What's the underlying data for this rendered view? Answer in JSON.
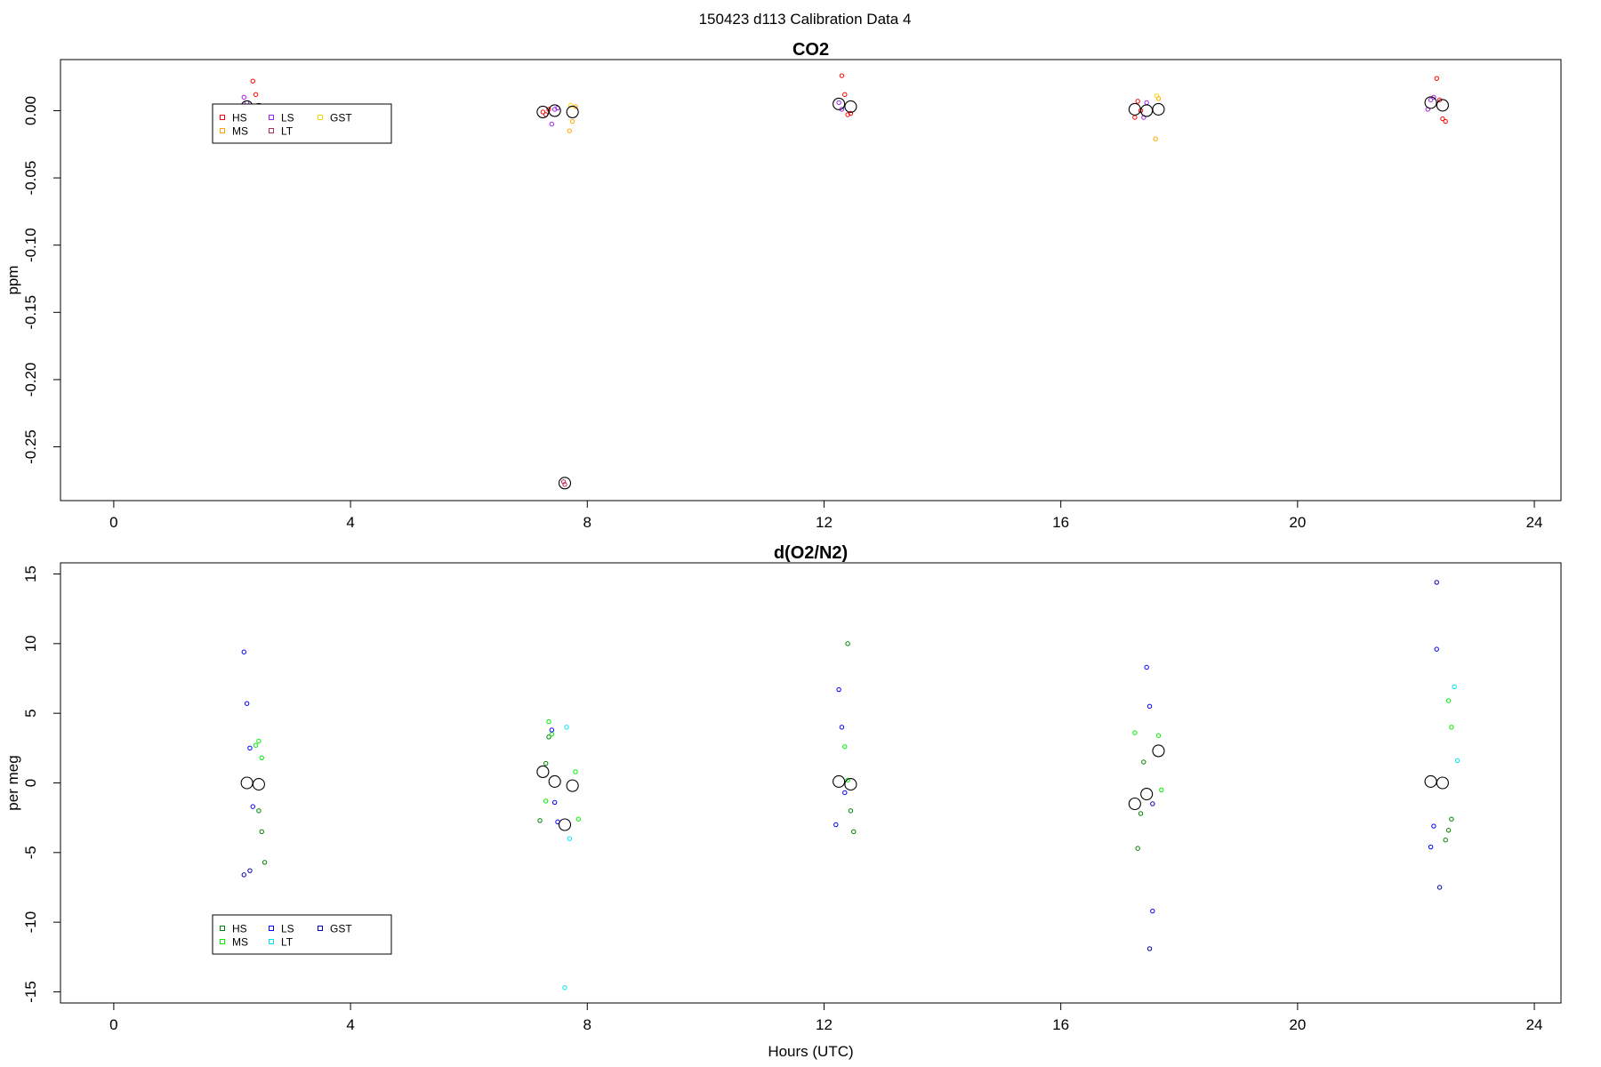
{
  "figure_title": "150423   d113   Calibration Data 4",
  "colors": {
    "HS_co2": "#ff0000",
    "MS_co2": "#ffa500",
    "LS_co2": "#a020f0",
    "LT_co2": "#b03060",
    "GST_co2": "#ffd700",
    "HS_o2": "#008000",
    "MS_o2": "#00ee00",
    "LS_o2": "#0000ff",
    "LT_o2": "#00e5ee",
    "GST_o2": "#0000aa",
    "mean": "#000000"
  },
  "chart_data": [
    {
      "type": "scatter",
      "title": "CO2",
      "xlabel": "",
      "ylabel": "ppm",
      "xlim": [
        -0.9,
        24.45
      ],
      "ylim": [
        -0.29,
        0.038
      ],
      "xticks": [
        "0",
        "4",
        "8",
        "12",
        "16",
        "20",
        "24"
      ],
      "xtick_values": [
        0,
        4,
        8,
        12,
        16,
        20,
        24
      ],
      "yticks": [
        "-0.25",
        "-0.20",
        "-0.15",
        "-0.10",
        "-0.05",
        "0.00"
      ],
      "ytick_values": [
        -0.25,
        -0.2,
        -0.15,
        -0.1,
        -0.05,
        0.0
      ],
      "grid": false,
      "legend_position": "top-left",
      "legend": [
        "HS",
        "MS",
        "LS",
        "LT",
        "GST"
      ],
      "series": [
        {
          "name": "HS",
          "color": "#ff0000",
          "x": [
            2.35,
            2.4,
            7.25,
            7.3,
            7.35,
            12.3,
            12.35,
            12.4,
            12.45,
            17.25,
            17.3,
            17.35,
            22.35,
            22.4,
            22.45,
            22.5
          ],
          "y": [
            0.022,
            0.012,
            -0.001,
            -0.003,
            0.001,
            0.026,
            0.012,
            -0.003,
            -0.002,
            -0.005,
            0.007,
            0.0,
            0.024,
            0.008,
            -0.006,
            -0.008
          ]
        },
        {
          "name": "MS",
          "color": "#ffa500",
          "x": [
            2.4,
            7.7,
            7.75,
            7.8,
            17.6,
            17.65
          ],
          "y": [
            0.001,
            -0.015,
            -0.008,
            0.003,
            -0.021,
            0.009
          ]
        },
        {
          "name": "LS",
          "color": "#a020f0",
          "x": [
            2.2,
            2.25,
            7.4,
            7.45,
            7.5,
            12.25,
            12.3,
            17.4,
            17.45,
            22.2,
            22.25,
            22.3
          ],
          "y": [
            0.01,
            0.006,
            -0.01,
            0.001,
            0.002,
            0.006,
            0.001,
            -0.005,
            0.006,
            0.001,
            0.008,
            0.01
          ]
        },
        {
          "name": "LT",
          "color": "#b03060",
          "x": [
            7.6,
            7.62
          ],
          "y": [
            -0.276,
            -0.278
          ]
        },
        {
          "name": "GST",
          "color": "#ffd700",
          "x": [
            7.72,
            17.62
          ],
          "y": [
            0.004,
            0.011
          ]
        },
        {
          "name": "mean",
          "color": "#000000",
          "x": [
            2.25,
            2.45,
            7.25,
            7.45,
            7.62,
            7.75,
            12.25,
            12.45,
            17.25,
            17.45,
            17.65,
            22.25,
            22.45
          ],
          "y": [
            0.003,
            0.001,
            -0.001,
            0.0,
            -0.277,
            -0.001,
            0.005,
            0.003,
            0.001,
            0.0,
            0.001,
            0.006,
            0.004
          ]
        }
      ]
    },
    {
      "type": "scatter",
      "title": "d(O2/N2)",
      "xlabel": "Hours (UTC)",
      "ylabel": "per meg",
      "xlim": [
        -0.9,
        24.45
      ],
      "ylim": [
        -15.8,
        15.8
      ],
      "xticks": [
        "0",
        "4",
        "8",
        "12",
        "16",
        "20",
        "24"
      ],
      "xtick_values": [
        0,
        4,
        8,
        12,
        16,
        20,
        24
      ],
      "yticks": [
        "-15",
        "-10",
        "-5",
        "0",
        "5",
        "10",
        "15"
      ],
      "ytick_values": [
        -15,
        -10,
        -5,
        0,
        5,
        10,
        15
      ],
      "grid": false,
      "legend_position": "bottom-left",
      "legend": [
        "HS",
        "MS",
        "LS",
        "LT",
        "GST"
      ],
      "series": [
        {
          "name": "HS",
          "color": "#008000",
          "x": [
            2.45,
            2.5,
            2.55,
            7.2,
            7.3,
            7.35,
            12.4,
            12.45,
            12.5,
            17.3,
            17.35,
            17.4,
            22.5,
            22.55,
            22.6
          ],
          "y": [
            -2.0,
            -3.5,
            -5.7,
            -2.7,
            1.4,
            3.3,
            10.0,
            -2.0,
            -3.5,
            -4.7,
            -2.2,
            1.5,
            -4.1,
            -3.4,
            -2.6
          ]
        },
        {
          "name": "MS",
          "color": "#00ee00",
          "x": [
            2.4,
            2.45,
            2.5,
            7.3,
            7.35,
            7.4,
            7.8,
            7.85,
            12.35,
            12.4,
            17.25,
            17.65,
            17.7,
            22.55,
            22.6
          ],
          "y": [
            2.7,
            3.0,
            1.8,
            -1.3,
            4.4,
            3.5,
            0.8,
            -2.6,
            2.6,
            0.2,
            3.6,
            3.4,
            -0.5,
            5.9,
            4.0
          ]
        },
        {
          "name": "LS",
          "color": "#0000ff",
          "x": [
            2.2,
            2.25,
            2.3,
            2.35,
            7.4,
            7.45,
            7.5,
            12.2,
            12.25,
            12.3,
            12.35,
            17.45,
            17.5,
            17.55,
            22.25,
            22.3,
            22.35
          ],
          "y": [
            9.4,
            5.7,
            2.5,
            -1.7,
            3.8,
            -1.4,
            -2.8,
            -3.0,
            6.7,
            4.0,
            -0.7,
            8.3,
            5.5,
            -9.2,
            -4.6,
            -3.1,
            9.6
          ]
        },
        {
          "name": "LT",
          "color": "#00e5ee",
          "x": [
            7.62,
            7.65,
            7.7,
            22.65,
            22.7
          ],
          "y": [
            -14.7,
            4.0,
            -4.0,
            6.9,
            1.6
          ]
        },
        {
          "name": "GST",
          "color": "#0000aa",
          "x": [
            2.2,
            2.3,
            17.5,
            17.55,
            22.35,
            22.4
          ],
          "y": [
            -6.6,
            -6.3,
            -11.9,
            -1.5,
            14.4,
            -7.5
          ]
        },
        {
          "name": "mean",
          "color": "#000000",
          "x": [
            2.25,
            2.45,
            7.25,
            7.45,
            7.62,
            7.75,
            12.25,
            12.45,
            17.25,
            17.45,
            17.65,
            22.25,
            22.45
          ],
          "y": [
            0.0,
            -0.1,
            0.8,
            0.1,
            -3.0,
            -0.2,
            0.1,
            -0.1,
            -1.5,
            -0.8,
            2.3,
            0.1,
            0.0
          ]
        }
      ]
    }
  ]
}
